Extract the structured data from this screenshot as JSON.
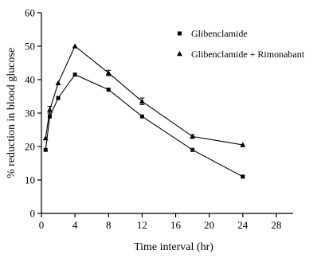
{
  "chart_data": {
    "type": "line",
    "xlabel": "Time interval (hr)",
    "ylabel": "% reduction in blood glucose",
    "xlim": [
      0,
      30
    ],
    "ylim": [
      0,
      60
    ],
    "xticks": [
      "0",
      "4",
      "8",
      "12",
      "16",
      "20",
      "24",
      "28"
    ],
    "yticks": [
      "0",
      "10",
      "20",
      "30",
      "40",
      "50",
      "60"
    ],
    "grid": false,
    "legend_position": "top-right",
    "series": [
      {
        "name": "Glibenclamide",
        "marker": "square",
        "x": [
          0.5,
          1,
          2,
          4,
          8,
          12,
          18,
          24
        ],
        "y": [
          19,
          29,
          34.5,
          41.5,
          37,
          29,
          19,
          11
        ]
      },
      {
        "name": "Glibenclamide + Rimonabant",
        "marker": "triangle",
        "x": [
          0.5,
          1,
          2,
          4,
          8,
          12,
          18,
          24
        ],
        "y": [
          22.5,
          31,
          39,
          50,
          42,
          33.5,
          23,
          20.5
        ],
        "error": [
          0,
          1,
          0,
          0,
          0.8,
          1,
          0.5,
          0
        ]
      }
    ]
  }
}
